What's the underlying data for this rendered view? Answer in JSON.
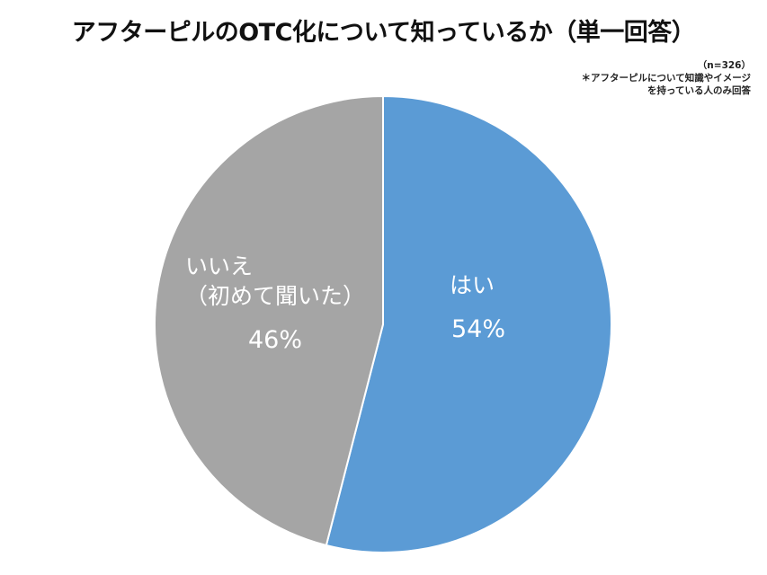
{
  "title": "アフターピルのOTC化について知っているか（単一回答）",
  "note": {
    "sample": "（n=326）",
    "line1": "＊アフターピルについて知識やイメージ",
    "line2": "を持っている人のみ回答"
  },
  "labels": {
    "yes": {
      "name": "はい",
      "pct": "54%"
    },
    "no": {
      "name_line1": "いいえ",
      "name_line2": "（初めて聞いた）",
      "pct": "46%"
    }
  },
  "colors": {
    "yes": "#5B9BD5",
    "no": "#A5A5A5",
    "separator": "#ffffff"
  },
  "chart_data": {
    "type": "pie",
    "title": "アフターピルのOTC化について知っているか（単一回答）",
    "subtitle": "（n=326） ＊アフターピルについて知識やイメージを持っている人のみ回答",
    "categories": [
      "はい",
      "いいえ（初めて聞いた）"
    ],
    "values": [
      54,
      46
    ],
    "unit": "%",
    "n": 326,
    "colors": [
      "#5B9BD5",
      "#A5A5A5"
    ],
    "start_angle": "12 o'clock",
    "direction": "clockwise",
    "legend": "none (data labels inside slices)"
  }
}
